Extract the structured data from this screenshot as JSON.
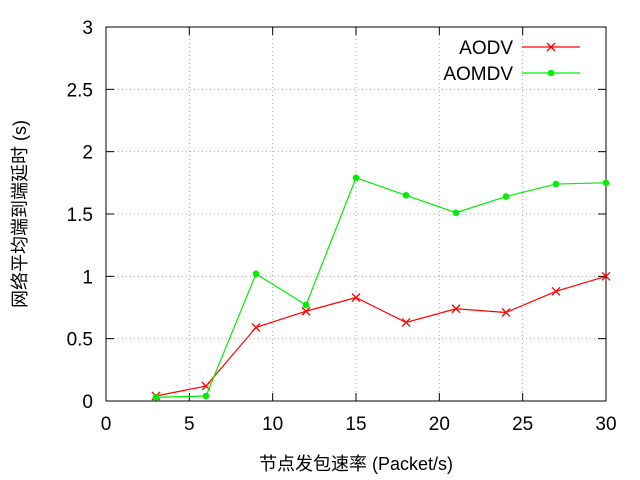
{
  "chart_data": {
    "type": "line",
    "title": "",
    "xlabel": "节点发包速率 (Packet/s)",
    "ylabel": "网络平均端到端延时 (s)",
    "xlim": [
      0,
      30
    ],
    "ylim": [
      0,
      3
    ],
    "x_ticks": [
      "0",
      "5",
      "10",
      "15",
      "20",
      "25",
      "30"
    ],
    "y_ticks": [
      "0",
      "0.5",
      "1",
      "1.5",
      "2",
      "2.5",
      "3"
    ],
    "grid": true,
    "legend_position": "top-right",
    "series": [
      {
        "name": "AODV",
        "color": "#ff0000",
        "marker": "x",
        "x": [
          3,
          6,
          9,
          12,
          15,
          18,
          21,
          24,
          27,
          30
        ],
        "y": [
          0.04,
          0.12,
          0.59,
          0.72,
          0.83,
          0.63,
          0.74,
          0.71,
          0.88,
          1.0
        ]
      },
      {
        "name": "AOMDV",
        "color": "#00ee00",
        "marker": "circle",
        "x": [
          3,
          6,
          9,
          12,
          15,
          18,
          21,
          24,
          27,
          30
        ],
        "y": [
          0.03,
          0.04,
          1.02,
          0.77,
          1.79,
          1.65,
          1.51,
          1.64,
          1.74,
          1.75
        ]
      }
    ]
  }
}
